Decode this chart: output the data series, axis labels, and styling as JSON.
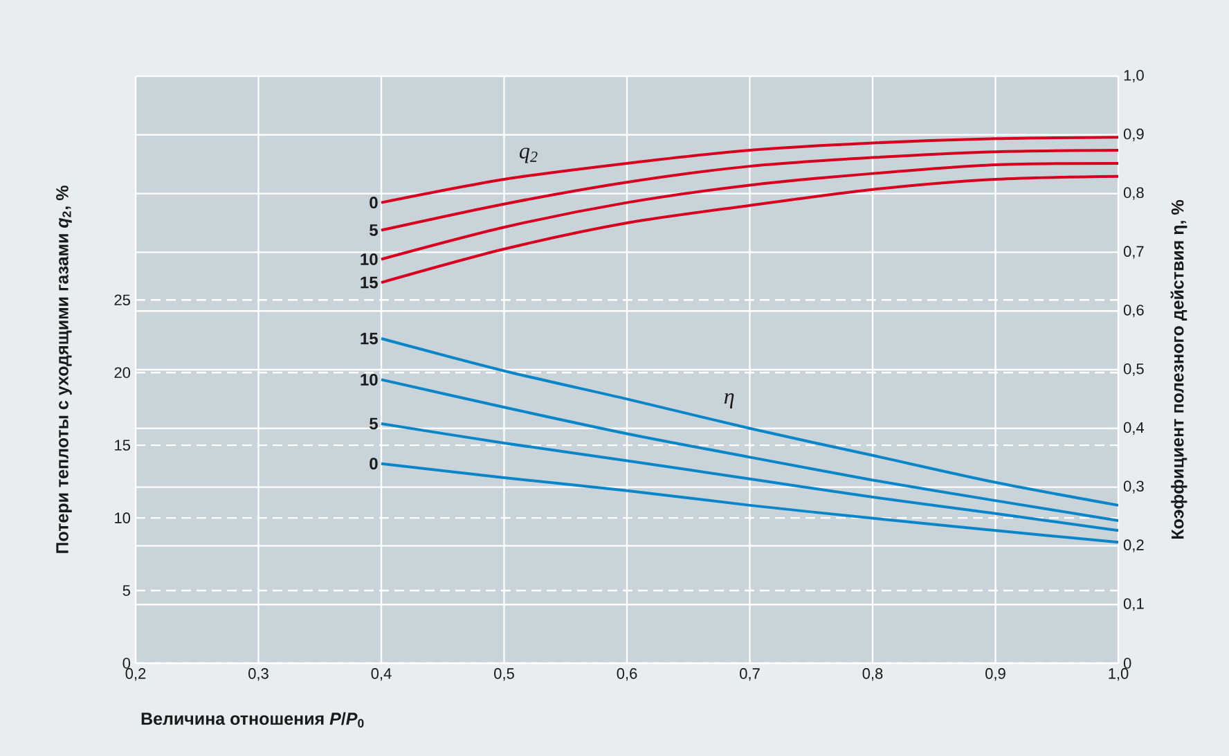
{
  "chart_data": {
    "type": "line",
    "xlabel": "Величина отношения *P*/*P*$_{0}$",
    "ylabel": "Потери теплоты с уходящими газами *q*$_{2}$, %",
    "y2label": "Коэффициент полезного действия η, %",
    "x": [
      0.4,
      0.5,
      0.6,
      0.7,
      0.8,
      0.9,
      1.0
    ],
    "xlim": [
      0.2,
      1.0
    ],
    "xticks": [
      {
        "value": 0.2,
        "label": "0,2"
      },
      {
        "value": 0.3,
        "label": "0,3"
      },
      {
        "value": 0.4,
        "label": "0,4"
      },
      {
        "value": 0.5,
        "label": "0,5"
      },
      {
        "value": 0.6,
        "label": "0,6"
      },
      {
        "value": 0.7,
        "label": "0,7"
      },
      {
        "value": 0.8,
        "label": "0,8"
      },
      {
        "value": 0.9,
        "label": "0,9"
      },
      {
        "value": 1.0,
        "label": "1,0"
      }
    ],
    "ylim": [
      0,
      40.4
    ],
    "yticks": [
      0,
      5,
      10,
      15,
      20,
      25
    ],
    "y2lim": [
      0,
      1.0
    ],
    "y2ticks": [
      0,
      {
        "value": 0.1,
        "label": "0,1"
      },
      {
        "value": 0.2,
        "label": "0,2"
      },
      {
        "value": 0.3,
        "label": "0,3"
      },
      {
        "value": 0.4,
        "label": "0,4"
      },
      {
        "value": 0.5,
        "label": "0,5"
      },
      {
        "value": 0.6,
        "label": "0,6"
      },
      {
        "value": 0.7,
        "label": "0,7"
      },
      {
        "value": 0.8,
        "label": "0,8"
      },
      {
        "value": 0.9,
        "label": "0,9"
      },
      {
        "value": 1.0,
        "label": "1,0"
      }
    ],
    "grid": true,
    "series": [
      {
        "name": "0",
        "color": "#d7001e",
        "values": [
          31.7,
          33.3,
          34.4,
          35.3,
          35.8,
          36.1,
          36.2
        ]
      },
      {
        "name": "5",
        "color": "#d7001e",
        "values": [
          29.8,
          31.6,
          33.1,
          34.2,
          34.8,
          35.2,
          35.3
        ]
      },
      {
        "name": "10",
        "color": "#d7001e",
        "values": [
          27.8,
          30.0,
          31.7,
          32.9,
          33.7,
          34.3,
          34.4
        ]
      },
      {
        "name": "15",
        "color": "#d7001e",
        "values": [
          26.2,
          28.5,
          30.3,
          31.5,
          32.6,
          33.3,
          33.5
        ]
      },
      {
        "name": "15",
        "color": "#0a86c8",
        "axis": "y2",
        "values": [
          0.553,
          0.498,
          0.45,
          0.4,
          0.354,
          0.308,
          0.269
        ]
      },
      {
        "name": "10",
        "color": "#0a86c8",
        "axis": "y2",
        "values": [
          0.483,
          0.436,
          0.391,
          0.351,
          0.312,
          0.277,
          0.243
        ]
      },
      {
        "name": "5",
        "color": "#0a86c8",
        "axis": "y2",
        "values": [
          0.408,
          0.375,
          0.345,
          0.314,
          0.283,
          0.255,
          0.226
        ]
      },
      {
        "name": "0",
        "color": "#0a86c8",
        "axis": "y2",
        "values": [
          0.34,
          0.316,
          0.294,
          0.269,
          0.247,
          0.226,
          0.206
        ]
      }
    ],
    "annotations": [
      "*q*$_{2}$",
      "η"
    ]
  }
}
